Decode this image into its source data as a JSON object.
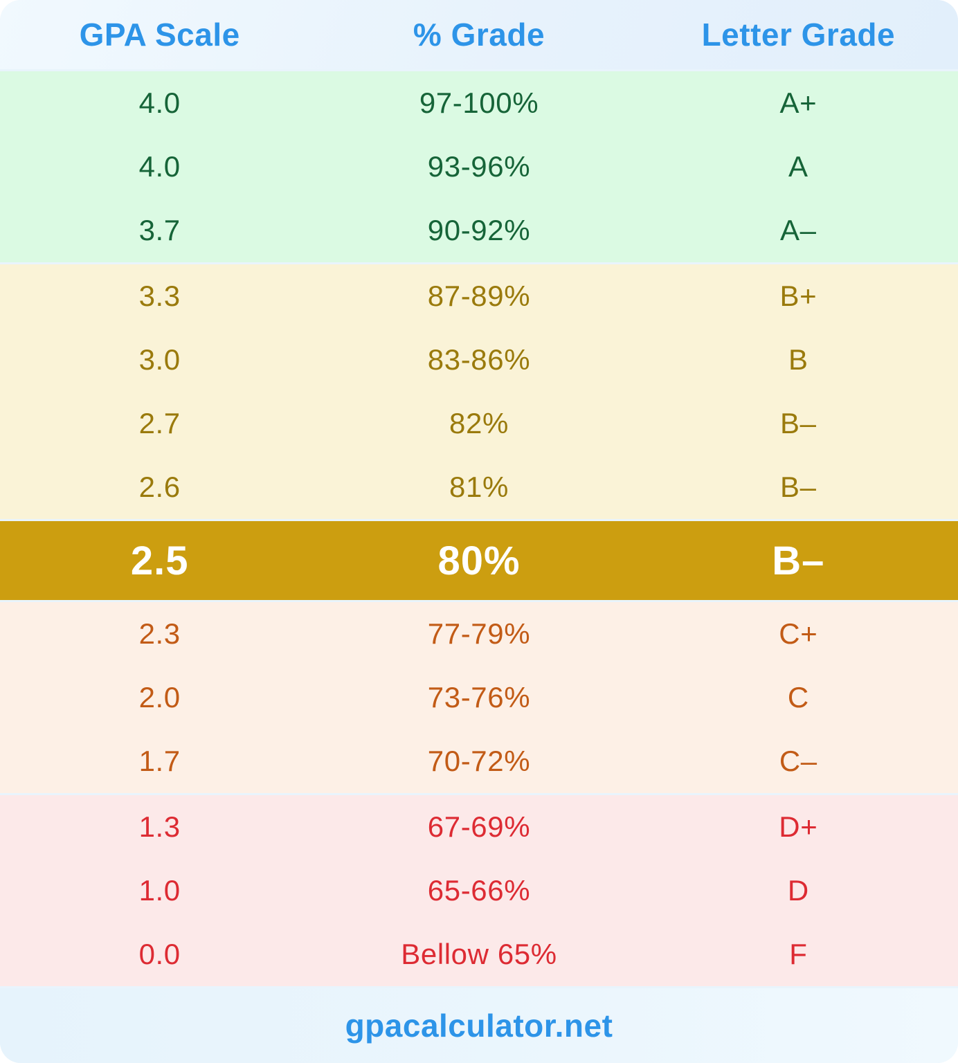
{
  "header": {
    "columns": [
      "GPA Scale",
      "% Grade",
      "Letter Grade"
    ]
  },
  "colors": {
    "header_text": "#2D94E8",
    "card_background": "#E9F4FC",
    "highlight_background": "#CC9E10",
    "highlight_text": "#FFFFFF",
    "a_band_bg": "#DBFAE3",
    "a_band_text": "#166438",
    "b_band_bg": "#FAF3D7",
    "b_band_text": "#9A7A0C",
    "c_band_bg": "#FDF0E6",
    "c_band_text": "#C25B16",
    "df_band_bg": "#FCE9E9",
    "df_band_text": "#DD2B33"
  },
  "sections": [
    {
      "name": "a-band",
      "bg": "#DBFAE3",
      "text_color": "#166438",
      "highlight": false,
      "rows": [
        {
          "gpa": "4.0",
          "percent": "97-100%",
          "letter": "A+"
        },
        {
          "gpa": "4.0",
          "percent": "93-96%",
          "letter": "A"
        },
        {
          "gpa": "3.7",
          "percent": "90-92%",
          "letter": "A–"
        }
      ]
    },
    {
      "name": "b-band",
      "bg": "#FAF3D7",
      "text_color": "#9A7A0C",
      "highlight": false,
      "rows": [
        {
          "gpa": "3.3",
          "percent": "87-89%",
          "letter": "B+"
        },
        {
          "gpa": "3.0",
          "percent": "83-86%",
          "letter": "B"
        },
        {
          "gpa": "2.7",
          "percent": "82%",
          "letter": "B–"
        },
        {
          "gpa": "2.6",
          "percent": "81%",
          "letter": "B–"
        }
      ]
    },
    {
      "name": "highlight-band",
      "bg": "#CC9E10",
      "text_color": "#FFFFFF",
      "highlight": true,
      "rows": [
        {
          "gpa": "2.5",
          "percent": "80%",
          "letter": "B–"
        }
      ]
    },
    {
      "name": "c-band",
      "bg": "#FDF0E6",
      "text_color": "#C25B16",
      "highlight": false,
      "rows": [
        {
          "gpa": "2.3",
          "percent": "77-79%",
          "letter": "C+"
        },
        {
          "gpa": "2.0",
          "percent": "73-76%",
          "letter": "C"
        },
        {
          "gpa": "1.7",
          "percent": "70-72%",
          "letter": "C–"
        }
      ]
    },
    {
      "name": "df-band",
      "bg": "#FCE9E9",
      "text_color": "#DD2B33",
      "highlight": false,
      "rows": [
        {
          "gpa": "1.3",
          "percent": "67-69%",
          "letter": "D+"
        },
        {
          "gpa": "1.0",
          "percent": "65-66%",
          "letter": "D"
        },
        {
          "gpa": "0.0",
          "percent": "Bellow 65%",
          "letter": "F"
        }
      ]
    }
  ],
  "footer": {
    "site": "gpacalculator.net"
  },
  "chart_data": {
    "type": "table",
    "title": "GPA Scale to % Grade to Letter Grade conversion",
    "columns": [
      "GPA Scale",
      "% Grade",
      "Letter Grade"
    ],
    "rows": [
      [
        "4.0",
        "97-100%",
        "A+"
      ],
      [
        "4.0",
        "93-96%",
        "A"
      ],
      [
        "3.7",
        "90-92%",
        "A–"
      ],
      [
        "3.3",
        "87-89%",
        "B+"
      ],
      [
        "3.0",
        "83-86%",
        "B"
      ],
      [
        "2.7",
        "82%",
        "B–"
      ],
      [
        "2.6",
        "81%",
        "B–"
      ],
      [
        "2.5",
        "80%",
        "B–"
      ],
      [
        "2.3",
        "77-79%",
        "C+"
      ],
      [
        "2.0",
        "73-76%",
        "C"
      ],
      [
        "1.7",
        "70-72%",
        "C–"
      ],
      [
        "1.3",
        "67-69%",
        "D+"
      ],
      [
        "1.0",
        "65-66%",
        "D"
      ],
      [
        "0.0",
        "Bellow 65%",
        "F"
      ]
    ],
    "highlighted_row": {
      "gpa": "2.5",
      "percent": "80%",
      "letter": "B–"
    },
    "row_color_bands": {
      "A": "green",
      "B": "yellow",
      "B- (2.5) highlight": "gold",
      "C": "orange",
      "D/F": "red"
    }
  }
}
